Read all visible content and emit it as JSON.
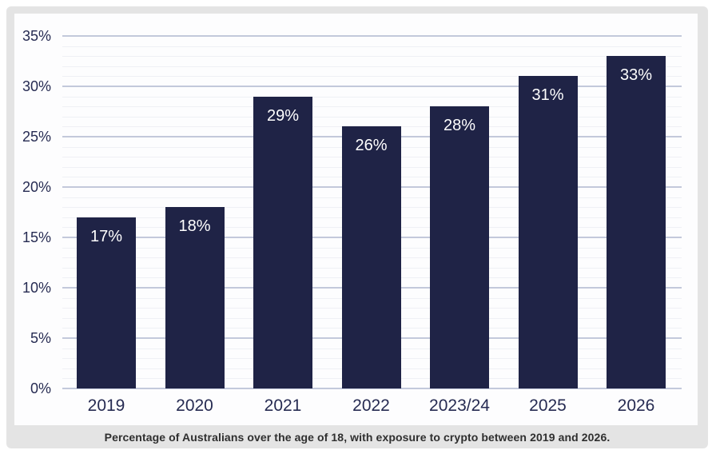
{
  "chart_data": {
    "type": "bar",
    "title": "",
    "xlabel": "",
    "ylabel": "",
    "categories": [
      "2019",
      "2020",
      "2021",
      "2022",
      "2023/24",
      "2025",
      "2026"
    ],
    "values": [
      17,
      18,
      29,
      26,
      28,
      31,
      33
    ],
    "data_labels": [
      "17%",
      "18%",
      "29%",
      "26%",
      "28%",
      "31%",
      "33%"
    ],
    "ylim": [
      0,
      35
    ],
    "ytick_step": 5,
    "minor_tick_step": 1,
    "ytick_labels": [
      "0%",
      "5%",
      "10%",
      "15%",
      "20%",
      "25%",
      "30%",
      "35%"
    ],
    "grid": true,
    "minor_grid": true,
    "legend": false,
    "caption": "Percentage of Australians over the age of 18, with exposure to crypto between 2019 and 2026.",
    "colors": {
      "bar": "#1f2346",
      "bar_label": "#ffffff",
      "axis_text": "#262b52",
      "major_gridline": "#c3c9db",
      "minor_gridline": "#eff0f5",
      "card_background": "#e4e4e4",
      "panel_background": "#fdfdfe",
      "caption_text": "#2f2f2f"
    }
  }
}
